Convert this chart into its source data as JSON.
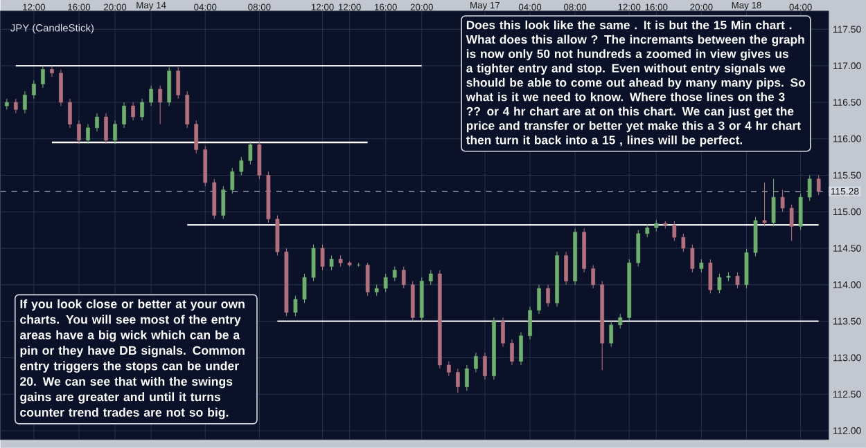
{
  "chart_data": {
    "type": "candlestick",
    "title": "JPY (CandleStick)",
    "annotations": [
      "Does this look like the same . It is but the 15 Min chart . What does this allow ? The incremants between the graph is now only 50 not hundreds a zoomed in view gives us a tighter entry and stop. Even without entry signals we should be able to come out ahead by many many pips. So what is it we need to know. Where those lines on the 3 ?? or 4 hr chart are at on this chart. We can just get the price and transfer or better yet make this a 3 or 4 hr chart then turn it back into a 15 , lines will be perfect.",
      "If you look close or better at your own charts. You will see most of the entry areas have a big wick which can be a pin or they have DB signals. Common entry triggers the stops can be under 20. We can see that with the swings gains are greater and until it turns counter trend trades are not so big."
    ],
    "categories": [
      null,
      null,
      null,
      "12:00",
      null,
      null,
      null,
      null,
      "16:00",
      null,
      null,
      null,
      "20:00",
      null,
      null,
      null,
      "May 14",
      null,
      null,
      null,
      null,
      null,
      "04:00",
      null,
      null,
      null,
      null,
      null,
      "08:00",
      null,
      null,
      null,
      null,
      null,
      null,
      "12:00",
      null,
      null,
      "12:00",
      null,
      null,
      null,
      "16:00",
      null,
      null,
      null,
      "20:00",
      null,
      null,
      null,
      null,
      null,
      null,
      "May 17",
      null,
      null,
      null,
      null,
      "04:00",
      null,
      null,
      null,
      null,
      "08:00",
      null,
      null,
      null,
      null,
      null,
      "12:00",
      null,
      null,
      "16:00",
      null,
      null,
      null,
      null,
      "20:00",
      null,
      null,
      null,
      null,
      "May 18",
      null,
      null,
      null,
      null,
      null,
      "04:00",
      null,
      null
    ],
    "ohlc": [
      [
        116.45,
        116.55,
        116.4,
        116.5
      ],
      [
        116.5,
        116.55,
        116.35,
        116.4
      ],
      [
        116.4,
        116.65,
        116.35,
        116.6
      ],
      [
        116.6,
        116.8,
        116.55,
        116.75
      ],
      [
        116.75,
        117.0,
        116.7,
        116.95
      ],
      [
        116.95,
        117.0,
        116.85,
        116.9
      ],
      [
        116.9,
        116.95,
        116.45,
        116.5
      ],
      [
        116.5,
        116.55,
        116.15,
        116.2
      ],
      [
        116.2,
        116.25,
        115.93,
        115.98
      ],
      [
        115.98,
        116.2,
        115.93,
        116.15
      ],
      [
        116.15,
        116.35,
        116.1,
        116.3
      ],
      [
        116.3,
        116.35,
        115.93,
        115.98
      ],
      [
        115.98,
        116.25,
        115.93,
        116.2
      ],
      [
        116.2,
        116.5,
        116.15,
        116.45
      ],
      [
        116.45,
        116.5,
        116.25,
        116.3
      ],
      [
        116.3,
        116.55,
        116.25,
        116.5
      ],
      [
        116.5,
        116.73,
        116.45,
        116.68
      ],
      [
        116.68,
        116.73,
        116.2,
        116.5
      ],
      [
        116.5,
        116.98,
        116.45,
        116.93
      ],
      [
        116.93,
        116.98,
        116.55,
        116.6
      ],
      [
        116.6,
        116.65,
        116.15,
        116.2
      ],
      [
        116.2,
        116.25,
        115.8,
        115.85
      ],
      [
        115.85,
        115.9,
        115.35,
        115.4
      ],
      [
        115.4,
        115.45,
        114.9,
        114.95
      ],
      [
        114.95,
        115.35,
        114.9,
        115.3
      ],
      [
        115.3,
        115.6,
        115.25,
        115.55
      ],
      [
        115.55,
        115.75,
        115.5,
        115.7
      ],
      [
        115.7,
        115.97,
        115.65,
        115.92
      ],
      [
        115.92,
        115.97,
        115.45,
        115.5
      ],
      [
        115.5,
        115.55,
        114.85,
        114.9
      ],
      [
        114.9,
        114.95,
        114.4,
        114.45
      ],
      [
        114.45,
        114.5,
        113.57,
        113.62
      ],
      [
        113.62,
        113.85,
        113.57,
        113.8
      ],
      [
        113.8,
        114.15,
        113.75,
        114.1
      ],
      [
        114.1,
        114.55,
        114.05,
        114.5
      ],
      [
        114.5,
        114.55,
        114.2,
        114.25
      ],
      [
        114.25,
        114.4,
        114.2,
        114.35
      ],
      [
        114.35,
        114.4,
        114.25,
        114.3
      ],
      [
        114.3,
        114.32,
        114.25,
        114.27
      ],
      [
        114.27,
        114.3,
        114.25,
        114.27
      ],
      [
        114.27,
        114.3,
        113.85,
        113.9
      ],
      [
        113.9,
        114.0,
        113.85,
        113.95
      ],
      [
        113.95,
        114.15,
        113.9,
        114.1
      ],
      [
        114.1,
        114.25,
        114.05,
        114.2
      ],
      [
        114.2,
        114.25,
        113.95,
        114.0
      ],
      [
        114.0,
        114.05,
        113.5,
        113.55
      ],
      [
        113.55,
        114.1,
        113.5,
        114.05
      ],
      [
        114.05,
        114.2,
        114.0,
        114.15
      ],
      [
        114.15,
        114.2,
        112.85,
        112.9
      ],
      [
        112.9,
        112.95,
        112.75,
        112.8
      ],
      [
        112.8,
        112.85,
        112.52,
        112.6
      ],
      [
        112.6,
        112.9,
        112.55,
        112.85
      ],
      [
        112.85,
        113.07,
        112.8,
        113.02
      ],
      [
        113.02,
        113.07,
        112.7,
        112.75
      ],
      [
        112.75,
        113.55,
        112.7,
        113.5
      ],
      [
        113.5,
        113.55,
        113.15,
        113.2
      ],
      [
        113.2,
        113.25,
        112.9,
        112.95
      ],
      [
        112.95,
        113.35,
        112.9,
        113.3
      ],
      [
        113.3,
        113.7,
        113.25,
        113.65
      ],
      [
        113.65,
        114.0,
        113.6,
        113.95
      ],
      [
        113.95,
        114.0,
        113.7,
        113.75
      ],
      [
        113.75,
        114.45,
        113.7,
        114.4
      ],
      [
        114.4,
        114.45,
        114.0,
        114.05
      ],
      [
        114.05,
        114.77,
        114.0,
        114.72
      ],
      [
        114.72,
        114.77,
        114.17,
        114.22
      ],
      [
        114.22,
        114.27,
        113.95,
        114.0
      ],
      [
        114.0,
        114.05,
        112.83,
        113.2
      ],
      [
        113.2,
        113.5,
        113.15,
        113.45
      ],
      [
        113.45,
        113.6,
        113.4,
        113.55
      ],
      [
        113.55,
        114.35,
        113.5,
        114.3
      ],
      [
        114.3,
        114.75,
        114.25,
        114.7
      ],
      [
        114.7,
        114.83,
        114.65,
        114.78
      ],
      [
        114.78,
        114.89,
        114.73,
        114.84
      ],
      [
        114.84,
        114.87,
        114.77,
        114.82
      ],
      [
        114.82,
        114.87,
        114.6,
        114.65
      ],
      [
        114.65,
        114.7,
        114.45,
        114.5
      ],
      [
        114.5,
        114.55,
        114.17,
        114.22
      ],
      [
        114.22,
        114.35,
        114.17,
        114.3
      ],
      [
        114.3,
        114.35,
        113.88,
        113.93
      ],
      [
        113.93,
        114.15,
        113.88,
        114.1
      ],
      [
        114.1,
        114.17,
        114.05,
        114.12
      ],
      [
        114.12,
        114.17,
        113.95,
        114.0
      ],
      [
        114.0,
        114.49,
        113.95,
        114.44
      ],
      [
        114.44,
        114.93,
        114.39,
        114.88
      ],
      [
        114.88,
        115.4,
        114.8,
        114.85
      ],
      [
        114.85,
        115.45,
        114.8,
        115.2
      ],
      [
        115.2,
        115.3,
        115.0,
        115.05
      ],
      [
        115.05,
        115.1,
        114.6,
        114.8
      ],
      [
        114.8,
        115.25,
        114.75,
        115.2
      ],
      [
        115.2,
        115.5,
        115.15,
        115.45
      ],
      [
        115.45,
        115.5,
        115.23,
        115.28
      ]
    ],
    "colors": [
      "#6fae6f",
      "#b0707e",
      "#6fae6f",
      "#6fae6f",
      "#6fae6f",
      "#b0707e",
      "#b0707e",
      "#b0707e",
      "#b0707e",
      "#6fae6f",
      "#6fae6f",
      "#b0707e",
      "#6fae6f",
      "#6fae6f",
      "#b0707e",
      "#6fae6f",
      "#6fae6f",
      "#b0707e",
      "#6fae6f",
      "#b0707e",
      "#b0707e",
      "#b0707e",
      "#b0707e",
      "#b0707e",
      "#6fae6f",
      "#6fae6f",
      "#6fae6f",
      "#6fae6f",
      "#b0707e",
      "#b0707e",
      "#b0707e",
      "#b0707e",
      "#6fae6f",
      "#6fae6f",
      "#6fae6f",
      "#b0707e",
      "#6fae6f",
      "#b0707e",
      "#b0707e",
      "#6fae6f",
      "#b0707e",
      "#6fae6f",
      "#6fae6f",
      "#6fae6f",
      "#b0707e",
      "#b0707e",
      "#6fae6f",
      "#6fae6f",
      "#b0707e",
      "#b0707e",
      "#b0707e",
      "#6fae6f",
      "#6fae6f",
      "#b0707e",
      "#6fae6f",
      "#b0707e",
      "#b0707e",
      "#6fae6f",
      "#6fae6f",
      "#6fae6f",
      "#b0707e",
      "#6fae6f",
      "#b0707e",
      "#6fae6f",
      "#b0707e",
      "#b0707e",
      "#b0707e",
      "#6fae6f",
      "#6fae6f",
      "#6fae6f",
      "#6fae6f",
      "#6fae6f",
      "#6fae6f",
      "#b0707e",
      "#b0707e",
      "#b0707e",
      "#b0707e",
      "#6fae6f",
      "#b0707e",
      "#6fae6f",
      "#6fae6f",
      "#b0707e",
      "#6fae6f",
      "#6fae6f",
      "#b0707e",
      "#6fae6f",
      "#b0707e",
      "#b0707e",
      "#6fae6f",
      "#6fae6f",
      "#b0707e"
    ],
    "series": [
      {
        "type": "line",
        "color": "#e8e8e8",
        "values": [
          null,
          117.0,
          117.0,
          117.0,
          117.0,
          117.0,
          117.0,
          117.0,
          117.0,
          117.0,
          117.0,
          117.0,
          117.0,
          117.0,
          117.0,
          117.0,
          117.0,
          117.0,
          117.0,
          117.0,
          117.0,
          117.0,
          117.0,
          117.0,
          117.0,
          117.0,
          117.0,
          117.0,
          117.0,
          117.0,
          117.0,
          117.0,
          117.0,
          117.0,
          117.0,
          117.0,
          117.0,
          117.0,
          117.0,
          117.0,
          117.0,
          117.0,
          117.0,
          117.0,
          117.0,
          117.0,
          117.0,
          null,
          null,
          null,
          null,
          null,
          null,
          null,
          null,
          null,
          null,
          null,
          null,
          null,
          null,
          null,
          null,
          null,
          null,
          null,
          null,
          null,
          null,
          null,
          null,
          null,
          null,
          null,
          null,
          null,
          null,
          null,
          null,
          null,
          null,
          null,
          null,
          null,
          null,
          null,
          null,
          null,
          null,
          null,
          null
        ]
      },
      {
        "type": "line",
        "color": "#ffffff",
        "values": [
          null,
          null,
          null,
          null,
          null,
          115.95,
          115.95,
          115.95,
          115.95,
          115.95,
          115.95,
          115.95,
          115.95,
          115.95,
          115.95,
          115.95,
          115.95,
          115.95,
          115.95,
          115.95,
          115.95,
          115.95,
          115.95,
          115.95,
          115.95,
          115.95,
          115.95,
          115.95,
          115.95,
          115.95,
          115.95,
          115.95,
          115.95,
          115.95,
          115.95,
          115.95,
          115.95,
          115.95,
          115.95,
          115.95,
          115.95,
          null,
          null,
          null,
          null,
          null,
          null,
          null,
          null,
          null,
          null,
          null,
          null,
          null,
          null,
          null,
          null,
          null,
          null,
          null,
          null,
          null,
          null,
          null,
          null,
          null,
          null,
          null,
          null,
          null,
          null,
          null,
          null,
          null,
          null,
          null,
          null,
          null,
          null,
          null,
          null,
          null,
          null,
          null,
          null,
          null,
          null,
          null,
          null,
          null,
          null
        ]
      },
      {
        "type": "line",
        "color": "#e8e8e8",
        "values": [
          null,
          null,
          null,
          null,
          null,
          null,
          null,
          null,
          null,
          null,
          null,
          null,
          null,
          null,
          null,
          null,
          null,
          null,
          null,
          null,
          114.82,
          114.82,
          114.82,
          114.82,
          114.82,
          114.82,
          114.82,
          114.82,
          114.82,
          114.82,
          114.82,
          114.82,
          114.82,
          114.82,
          114.82,
          114.82,
          114.82,
          114.82,
          114.82,
          114.82,
          114.82,
          114.82,
          114.82,
          114.82,
          114.82,
          114.82,
          114.82,
          114.82,
          114.82,
          114.82,
          114.82,
          114.82,
          114.82,
          114.82,
          114.82,
          114.82,
          114.82,
          114.82,
          114.82,
          114.82,
          114.82,
          114.82,
          114.82,
          114.82,
          114.82,
          114.82,
          114.82,
          114.82,
          114.82,
          114.82,
          114.82,
          114.82,
          114.82,
          114.82,
          114.82,
          114.82,
          114.82,
          114.82,
          114.82,
          114.82,
          114.82,
          114.82,
          114.82,
          114.82,
          114.82,
          114.82,
          114.82,
          114.82,
          114.82,
          114.82,
          114.82
        ]
      },
      {
        "type": "line",
        "color": "#e8e8e8",
        "values": [
          null,
          null,
          null,
          null,
          null,
          null,
          null,
          null,
          null,
          null,
          null,
          null,
          null,
          null,
          null,
          null,
          null,
          null,
          null,
          null,
          null,
          null,
          null,
          null,
          null,
          null,
          null,
          null,
          null,
          null,
          113.5,
          113.5,
          113.5,
          113.5,
          113.5,
          113.5,
          113.5,
          113.5,
          113.5,
          113.5,
          113.5,
          113.5,
          113.5,
          113.5,
          113.5,
          113.5,
          113.5,
          113.5,
          113.5,
          113.5,
          113.5,
          113.5,
          113.5,
          113.5,
          113.5,
          113.5,
          113.5,
          113.5,
          113.5,
          113.5,
          113.5,
          113.5,
          113.5,
          113.5,
          113.5,
          113.5,
          113.5,
          113.5,
          113.5,
          113.5,
          113.5,
          113.5,
          113.5,
          113.5,
          113.5,
          113.5,
          113.5,
          113.5,
          113.5,
          113.5,
          113.5,
          113.5,
          113.5,
          113.5,
          113.5,
          113.5,
          113.5,
          113.5,
          113.5,
          113.5,
          113.5
        ]
      }
    ],
    "ref_lines": [
      {
        "axis": "y",
        "value": 115.28,
        "label": "115.28",
        "color": "#9098a8",
        "line_style": "dashed"
      }
    ],
    "ylim": [
      111.88,
      117.75
    ],
    "yticks": [
      {
        "value": 112,
        "label": "112.00"
      },
      {
        "value": 112.5,
        "label": "112.50"
      },
      {
        "value": 113,
        "label": "113.00"
      },
      {
        "value": 113.5,
        "label": "113.50"
      },
      {
        "value": 114,
        "label": "114.00"
      },
      {
        "value": 114.5,
        "label": "114.50"
      },
      {
        "value": 115,
        "label": "115.00"
      },
      {
        "value": 115.5,
        "label": "115.50"
      },
      {
        "value": 116,
        "label": "116.00"
      },
      {
        "value": 116.5,
        "label": "116.50"
      },
      {
        "value": 117,
        "label": "117.00"
      },
      {
        "value": 117.5,
        "label": "117.50"
      }
    ],
    "grid": true
  }
}
